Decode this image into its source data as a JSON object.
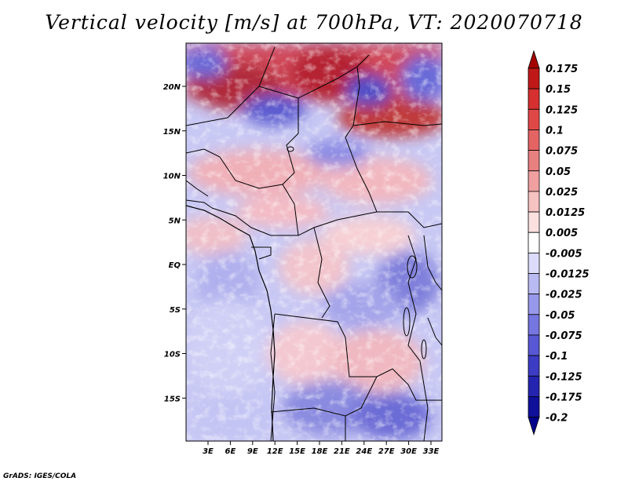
{
  "title": "Vertical velocity [m/s] at 700hPa, VT: 2020070718",
  "footer": "GrADS: IGES/COLA",
  "map": {
    "lat_labels": [
      "20N",
      "15N",
      "10N",
      "5N",
      "EQ",
      "5S",
      "10S",
      "15S"
    ],
    "lon_labels": [
      "3E",
      "6E",
      "9E",
      "12E",
      "15E",
      "18E",
      "21E",
      "24E",
      "27E",
      "30E",
      "33E"
    ]
  },
  "colorbar": {
    "labels": [
      "0.175",
      "0.15",
      "0.125",
      "0.1",
      "0.075",
      "0.05",
      "0.025",
      "0.0125",
      "0.005",
      "-0.005",
      "-0.0125",
      "-0.025",
      "-0.05",
      "-0.075",
      "-0.1",
      "-0.125",
      "-0.175",
      "-0.2"
    ],
    "colors": [
      "#a50000",
      "#c01818",
      "#d63030",
      "#e04848",
      "#e46464",
      "#e88080",
      "#f0a0a0",
      "#f6c2c2",
      "#fbe0e0",
      "#ffffff",
      "#dcdcfa",
      "#babaf2",
      "#9898ea",
      "#7676e0",
      "#5858d4",
      "#3c3cc4",
      "#2424b0",
      "#10109a",
      "#00008c"
    ]
  }
}
